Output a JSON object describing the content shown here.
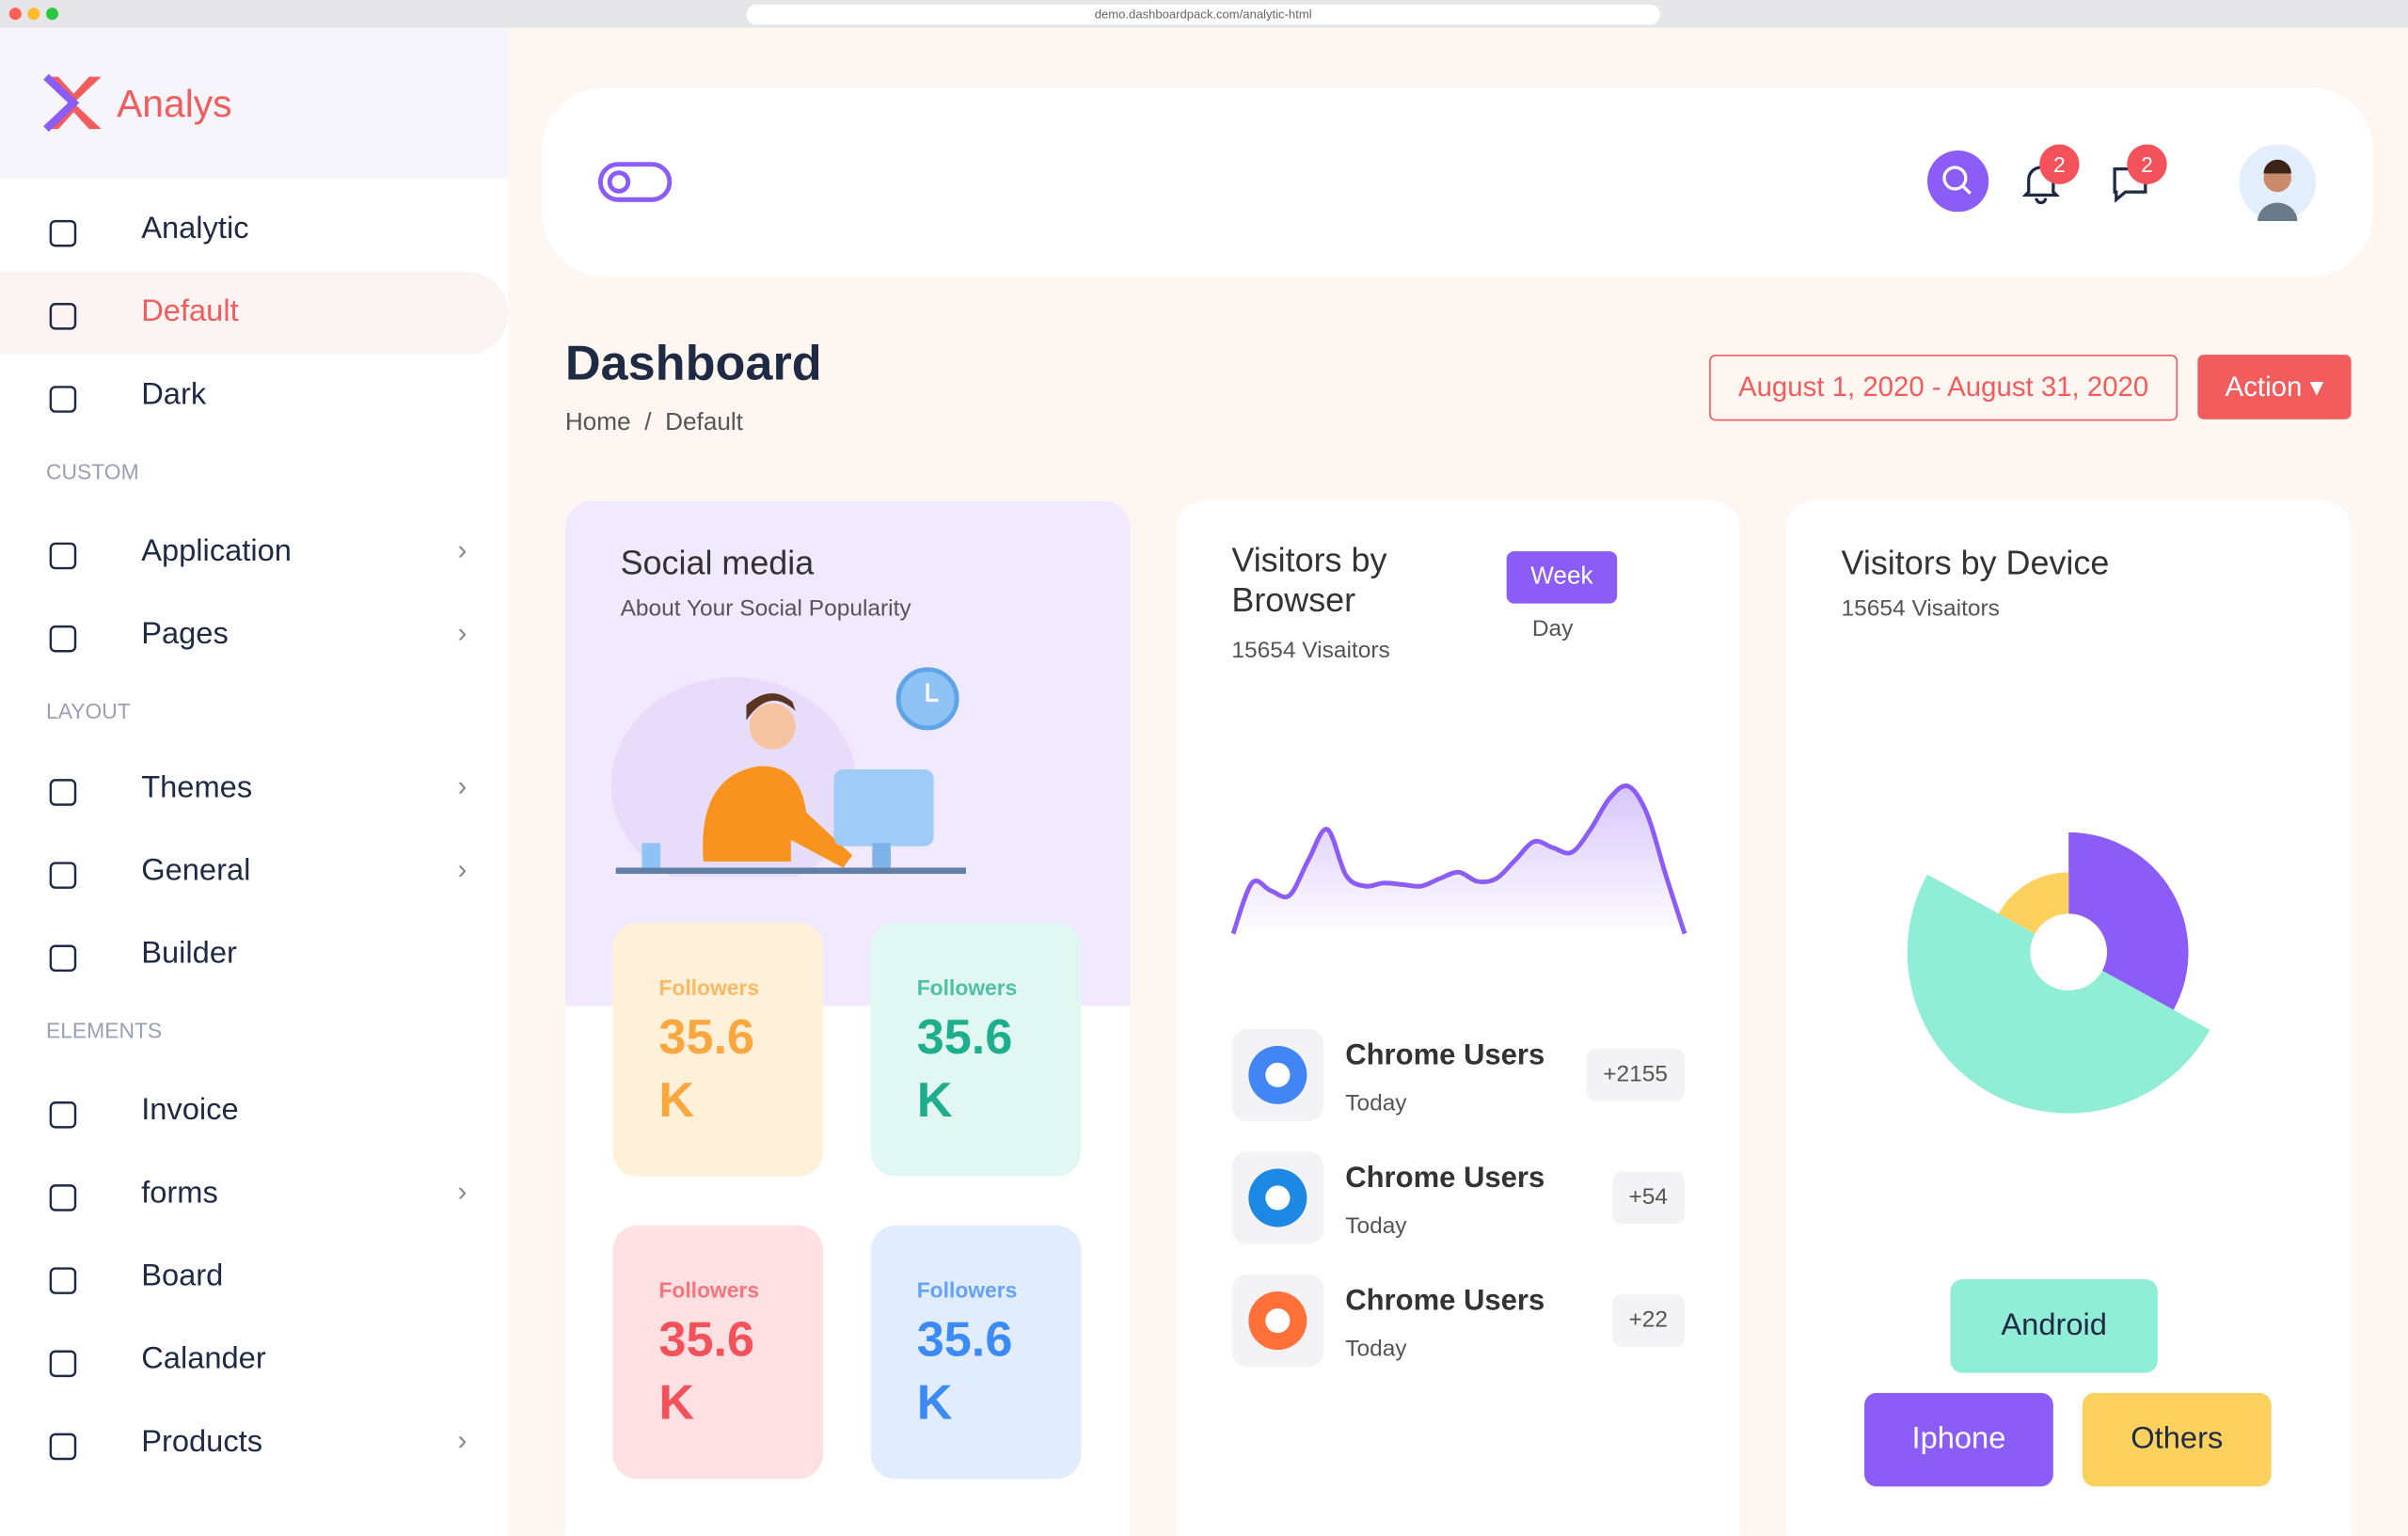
{
  "browser_url": "demo.dashboardpack.com/analytic-html",
  "sidebar": {
    "brand": "Analys",
    "items": [
      {
        "label": "Analytic"
      },
      {
        "label": "Default",
        "active": true
      },
      {
        "label": "Dark"
      },
      {
        "section": "CUSTOM"
      },
      {
        "label": "Application",
        "submenu": true
      },
      {
        "label": "Pages",
        "submenu": true
      },
      {
        "section": "LAYOUT"
      },
      {
        "label": "Themes",
        "submenu": true
      },
      {
        "label": "General",
        "submenu": true
      },
      {
        "label": "Builder"
      },
      {
        "section": "ELEMENTS"
      },
      {
        "label": "Invoice"
      },
      {
        "label": "forms",
        "submenu": true
      },
      {
        "label": "Board"
      },
      {
        "label": "Calander"
      },
      {
        "label": "Products",
        "submenu": true
      }
    ]
  },
  "header": {
    "notifications": "2",
    "messages": "2"
  },
  "page": {
    "title": "Dashboard",
    "breadcrumb": [
      "Home",
      "Default"
    ],
    "date_range": "August 1, 2020 - August 31, 2020",
    "action": "Action"
  },
  "social": {
    "title": "Social media",
    "subtitle": "About Your Social Popularity",
    "stats": [
      {
        "label": "Followers",
        "value": "35.6",
        "unit": "K",
        "color": "#f9a73e",
        "background": "#fff0d9"
      },
      {
        "label": "Followers",
        "value": "35.6",
        "unit": "K",
        "color": "#1fae8c",
        "background": "#e0f8f1"
      },
      {
        "label": "Followers",
        "value": "35.6",
        "unit": "K",
        "color": "#f4525a",
        "background": "#ffe1e4"
      },
      {
        "label": "Followers",
        "value": "35.6",
        "unit": "K",
        "color": "#3b8af5",
        "background": "#e1edff"
      }
    ]
  },
  "browser": {
    "title": "Visitors by Browser",
    "subtitle": "15654 Visaitors",
    "tabs": [
      "Week",
      "Day"
    ],
    "chart_data": {
      "type": "area",
      "color": "#8b5cf6",
      "ylim": [
        0,
        100
      ],
      "values": [
        2,
        35,
        30,
        27,
        50,
        70,
        40,
        33,
        35,
        34,
        33,
        38,
        42,
        36,
        38,
        50,
        62,
        58,
        55,
        70,
        90,
        98,
        80,
        40,
        2
      ]
    },
    "rows": [
      {
        "name": "Chrome Users",
        "when": "Today",
        "count": "+2155"
      },
      {
        "name": "Chrome Users",
        "when": "Today",
        "count": "+54"
      },
      {
        "name": "Chrome Users",
        "when": "Today",
        "count": "+22"
      }
    ]
  },
  "device": {
    "title": "Visitors by Device",
    "subtitle": "15654 Visaitors",
    "chart_data": {
      "type": "pie",
      "categories": [
        "Android",
        "Iphone",
        "Others"
      ],
      "values": [
        50,
        33,
        17
      ],
      "colors": [
        "#90eed6",
        "#8b5cf6",
        "#fdd15d"
      ]
    }
  }
}
